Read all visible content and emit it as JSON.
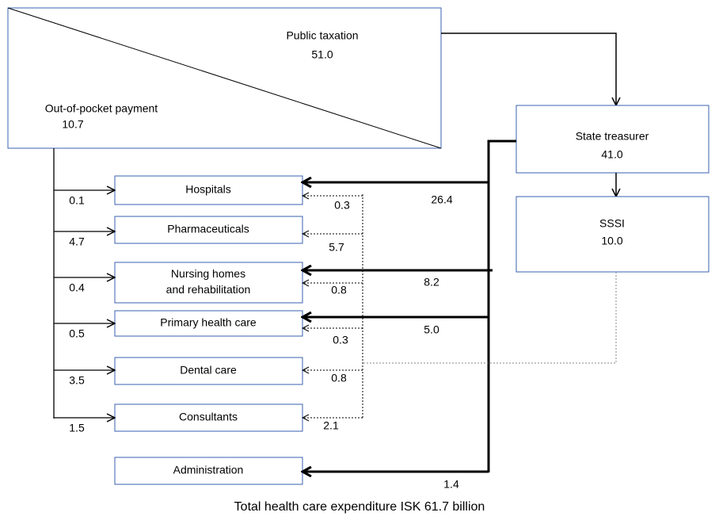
{
  "sources": {
    "public_taxation": {
      "label": "Public taxation",
      "value": "51.0"
    },
    "out_of_pocket": {
      "label": "Out-of-pocket payment",
      "value": "10.7"
    },
    "state_treasurer": {
      "label": "State treasurer",
      "value": "41.0"
    },
    "sssi": {
      "label": "SSSI",
      "value": "10.0"
    }
  },
  "providers": [
    {
      "lines": [
        "Hospitals"
      ]
    },
    {
      "lines": [
        "Pharmaceuticals"
      ]
    },
    {
      "lines": [
        "Nursing homes",
        "and rehabilitation"
      ]
    },
    {
      "lines": [
        "Primary health care"
      ]
    },
    {
      "lines": [
        "Dental care"
      ]
    },
    {
      "lines": [
        "Consultants"
      ]
    },
    {
      "lines": [
        "Administration"
      ]
    }
  ],
  "flows": {
    "out_of_pocket": [
      "0.1",
      "4.7",
      "0.4",
      "0.5",
      "3.5",
      "1.5"
    ],
    "sssi": [
      "0.3",
      "5.7",
      "0.8",
      "0.3",
      "0.8",
      "2.1"
    ],
    "state_treasurer": [
      "26.4",
      "8.2",
      "5.0",
      "1.4"
    ]
  },
  "caption": "Total health care expenditure ISK 61.7 billion"
}
